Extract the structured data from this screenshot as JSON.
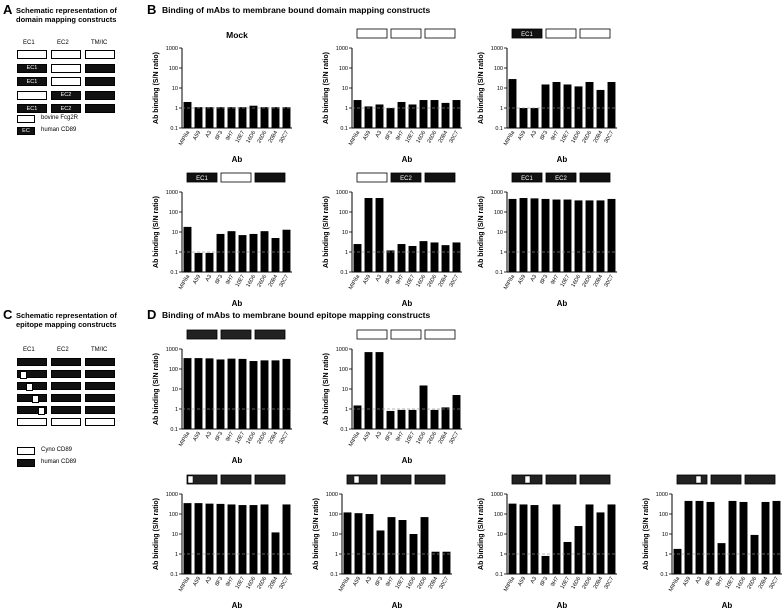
{
  "panels": {
    "A": {
      "letter": "A",
      "title_lines": [
        "Schematic representation of",
        "domain mapping constructs"
      ],
      "cols": [
        "EC1",
        "EC2",
        "TM/IC"
      ],
      "rows": [
        [
          [
            "",
            0
          ],
          [
            "",
            0
          ],
          [
            "",
            0
          ]
        ],
        [
          [
            "EC1",
            1
          ],
          [
            "",
            0
          ],
          [
            "",
            1
          ]
        ],
        [
          [
            "EC1",
            1
          ],
          [
            "",
            0
          ],
          [
            "",
            1
          ]
        ],
        [
          [
            "",
            0
          ],
          [
            "EC2",
            1
          ],
          [
            "",
            1
          ]
        ],
        [
          [
            "EC1",
            1
          ],
          [
            "EC2",
            1
          ],
          [
            "",
            1
          ]
        ]
      ],
      "legend": [
        {
          "label": "bovine Fcg2R",
          "dark": false,
          "text": ""
        },
        {
          "label": "human CD89",
          "dark": true,
          "text": "EC"
        }
      ]
    },
    "B": {
      "letter": "B",
      "title": "Binding of mAbs to membrane bound domain mapping constructs"
    },
    "C": {
      "letter": "C",
      "title_lines": [
        "Schematic representation of",
        "epitope mapping constructs"
      ],
      "cols": [
        "EC1",
        "EC2",
        "TM/IC"
      ],
      "rows": [
        [
          -1
        ],
        [
          0
        ],
        [
          1
        ],
        [
          2
        ],
        [
          3
        ],
        [
          99
        ]
      ],
      "legend": [
        {
          "label": "Cyno CD89",
          "dark": false
        },
        {
          "label": "human CD89",
          "dark": true
        }
      ]
    },
    "D": {
      "letter": "D",
      "title": "Binding of mAbs to membrane bound epitope mapping constructs"
    }
  },
  "axis": {
    "ylabel": "Ab binding (S/N ratio)",
    "xlabel": "Ab",
    "yticks": [
      "0.1",
      "1",
      "10",
      "100",
      "1000"
    ]
  },
  "chart_data": [
    {
      "type": "bar",
      "id": "B1",
      "title": "Mock",
      "header": null,
      "categories": [
        "MIP8a",
        "A59",
        "A3",
        "8F3",
        "9H7",
        "10E7",
        "16D6",
        "26D6",
        "20B4",
        "30C7"
      ],
      "values": [
        2.0,
        1.1,
        1.1,
        1.1,
        1.1,
        1.1,
        1.3,
        1.1,
        1.1,
        1.1
      ],
      "ylim": [
        0.1,
        1000
      ],
      "yscale": "log",
      "reference_line": 1
    },
    {
      "type": "bar",
      "id": "B2",
      "title": "",
      "header": [
        {
          "t": "",
          "d": 0
        },
        {
          "t": "",
          "d": 0
        },
        {
          "t": "",
          "d": 0
        }
      ],
      "categories": [
        "MIP8a",
        "A59",
        "A3",
        "8F3",
        "9H7",
        "10E7",
        "16D6",
        "26D6",
        "20B4",
        "30C7"
      ],
      "values": [
        2.5,
        1.2,
        1.5,
        1.0,
        2.0,
        1.5,
        2.5,
        2.5,
        1.8,
        2.5
      ],
      "ylim": [
        0.1,
        1000
      ],
      "yscale": "log",
      "reference_line": 1
    },
    {
      "type": "bar",
      "id": "B3",
      "title": "",
      "header": [
        {
          "t": "EC1",
          "d": 1
        },
        {
          "t": "",
          "d": 0
        },
        {
          "t": "",
          "d": 0
        }
      ],
      "categories": [
        "MIP8a",
        "A59",
        "A3",
        "8F3",
        "9H7",
        "10E7",
        "16D6",
        "26D6",
        "20B4",
        "30C7"
      ],
      "values": [
        28,
        1.0,
        1.0,
        15,
        20,
        15,
        12,
        20,
        8,
        20
      ],
      "ylim": [
        0.1,
        1000
      ],
      "yscale": "log",
      "reference_line": 1
    },
    {
      "type": "bar",
      "id": "B4",
      "title": "",
      "header": [
        {
          "t": "EC1",
          "d": 1
        },
        {
          "t": "",
          "d": 0
        },
        {
          "t": "",
          "d": 1
        }
      ],
      "categories": [
        "MIP8a",
        "A59",
        "A3",
        "8F3",
        "9H7",
        "10E7",
        "16D6",
        "26D6",
        "20B4",
        "30C7"
      ],
      "values": [
        18,
        0.9,
        0.9,
        8,
        11,
        7,
        8,
        11,
        5,
        13
      ],
      "ylim": [
        0.1,
        1000
      ],
      "yscale": "log",
      "reference_line": 1
    },
    {
      "type": "bar",
      "id": "B5",
      "title": "",
      "header": [
        {
          "t": "",
          "d": 0
        },
        {
          "t": "EC2",
          "d": 1
        },
        {
          "t": "",
          "d": 1
        }
      ],
      "categories": [
        "MIP8a",
        "A59",
        "A3",
        "8F3",
        "9H7",
        "10E7",
        "16D6",
        "26D6",
        "20B4",
        "30C7"
      ],
      "values": [
        2.5,
        500,
        500,
        1.2,
        2.5,
        2.0,
        3.5,
        3.0,
        2.2,
        3.0
      ],
      "ylim": [
        0.1,
        1000
      ],
      "yscale": "log",
      "reference_line": 1
    },
    {
      "type": "bar",
      "id": "B6",
      "title": "",
      "header": [
        {
          "t": "EC1",
          "d": 1
        },
        {
          "t": "EC2",
          "d": 1
        },
        {
          "t": "",
          "d": 1
        }
      ],
      "categories": [
        "MIP8a",
        "A59",
        "A3",
        "8F3",
        "9H7",
        "10E7",
        "16D6",
        "26D6",
        "20B4",
        "30C7"
      ],
      "values": [
        450,
        500,
        480,
        450,
        420,
        420,
        380,
        380,
        380,
        450
      ],
      "ylim": [
        0.1,
        1000
      ],
      "yscale": "log",
      "reference_line": 1
    },
    {
      "type": "bar",
      "id": "D1",
      "title": "",
      "header": {
        "style": "dark",
        "notch": -1
      },
      "categories": [
        "MIP8a",
        "A59",
        "A3",
        "8F3",
        "9H7",
        "10E7",
        "16D6",
        "26D6",
        "20B4",
        "30C7"
      ],
      "values": [
        350,
        350,
        340,
        300,
        330,
        320,
        250,
        270,
        270,
        320
      ],
      "ylim": [
        0.1,
        1000
      ],
      "yscale": "log",
      "reference_line": 1
    },
    {
      "type": "bar",
      "id": "D2",
      "title": "",
      "header": {
        "style": "light",
        "notch": -1
      },
      "categories": [
        "MIP8a",
        "A59",
        "A3",
        "8F3",
        "9H7",
        "10E7",
        "16D6",
        "26D6",
        "20B4",
        "30C7"
      ],
      "values": [
        1.5,
        700,
        700,
        0.8,
        0.9,
        0.9,
        15,
        0.9,
        1.2,
        5
      ],
      "ylim": [
        0.1,
        1000
      ],
      "yscale": "log",
      "reference_line": 1
    },
    {
      "type": "bar",
      "id": "D3",
      "title": "",
      "header": {
        "style": "dark",
        "notch": 0
      },
      "categories": [
        "MIP8a",
        "A59",
        "A3",
        "8F3",
        "9H7",
        "10E7",
        "16D6",
        "26D6",
        "20B4",
        "30C7"
      ],
      "values": [
        350,
        350,
        330,
        320,
        300,
        280,
        280,
        300,
        12,
        300
      ],
      "ylim": [
        0.1,
        1000
      ],
      "yscale": "log",
      "reference_line": 1
    },
    {
      "type": "bar",
      "id": "D4",
      "title": "",
      "header": {
        "style": "dark",
        "notch": 1
      },
      "categories": [
        "MIP8a",
        "A59",
        "A3",
        "8F3",
        "9H7",
        "10E7",
        "16D6",
        "26D6",
        "20B4",
        "30C7"
      ],
      "values": [
        120,
        110,
        100,
        15,
        70,
        50,
        10,
        70,
        1.3,
        1.3
      ],
      "ylim": [
        0.1,
        1000
      ],
      "yscale": "log",
      "reference_line": 1
    },
    {
      "type": "bar",
      "id": "D5",
      "title": "",
      "header": {
        "style": "dark",
        "notch": 2
      },
      "categories": [
        "MIP8a",
        "A59",
        "A3",
        "8F3",
        "9H7",
        "10E7",
        "16D6",
        "26D6",
        "20B4",
        "30C7"
      ],
      "values": [
        330,
        300,
        280,
        0.8,
        300,
        4,
        25,
        300,
        120,
        300
      ],
      "ylim": [
        0.1,
        1000
      ],
      "yscale": "log",
      "reference_line": 1
    },
    {
      "type": "bar",
      "id": "D6",
      "title": "",
      "header": {
        "style": "dark",
        "notch": 3
      },
      "categories": [
        "MIP8a",
        "A59",
        "A3",
        "8F3",
        "9H7",
        "10E7",
        "16D6",
        "26D6",
        "20B4",
        "30C7"
      ],
      "values": [
        1.8,
        450,
        450,
        400,
        3.5,
        450,
        400,
        9,
        400,
        450
      ],
      "ylim": [
        0.1,
        1000
      ],
      "yscale": "log",
      "reference_line": 1
    }
  ]
}
